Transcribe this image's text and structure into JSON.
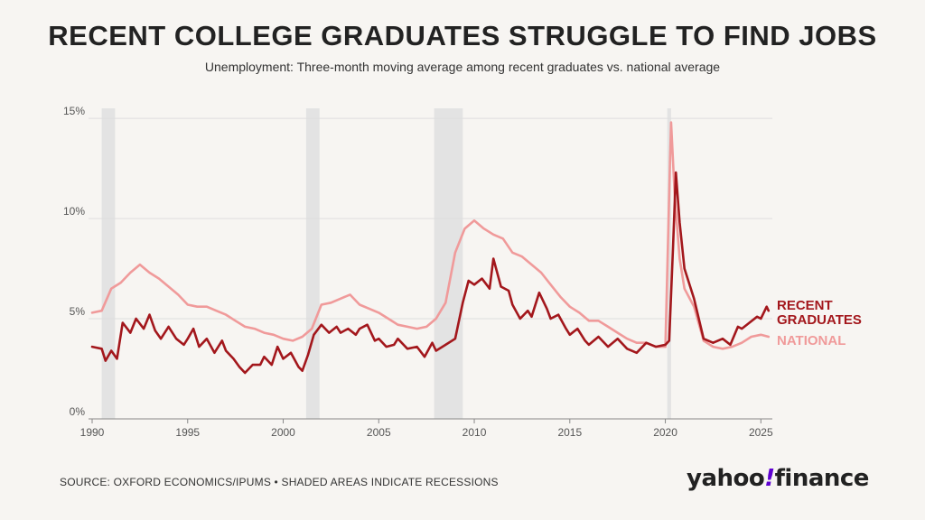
{
  "header": {
    "title": "RECENT COLLEGE GRADUATES STRUGGLE TO FIND JOBS",
    "subtitle": "Unemployment: Three-month moving average among recent graduates vs. national average"
  },
  "footer": {
    "source": "SOURCE: OXFORD ECONOMICS/IPUMS • SHADED AREAS INDICATE RECESSIONS",
    "logo_yahoo": "yahoo",
    "logo_bang": "!",
    "logo_finance": "finance"
  },
  "chart_data": {
    "type": "line",
    "title": "RECENT COLLEGE GRADUATES STRUGGLE TO FIND JOBS",
    "subtitle": "Unemployment: Three-month moving average among recent graduates vs. national average",
    "xlabel": "",
    "ylabel": "",
    "xlim": [
      1990,
      2025.6
    ],
    "ylim": [
      0,
      15.5
    ],
    "x_ticks": [
      1990,
      1995,
      2000,
      2005,
      2010,
      2015,
      2020,
      2025
    ],
    "x_tick_labels": [
      "1990",
      "1995",
      "2000",
      "2005",
      "2010",
      "2015",
      "2020",
      "2025"
    ],
    "y_ticks": [
      0,
      5,
      10,
      15
    ],
    "y_tick_labels": [
      "0%",
      "5%",
      "10%",
      "15%"
    ],
    "grid": true,
    "recessions": [
      [
        1990.5,
        1991.2
      ],
      [
        2001.2,
        2001.9
      ],
      [
        2007.9,
        2009.4
      ],
      [
        2020.1,
        2020.3
      ]
    ],
    "series": [
      {
        "name": "NATIONAL",
        "color": "#f09a9a",
        "points": [
          [
            1990,
            5.3
          ],
          [
            1990.5,
            5.4
          ],
          [
            1991,
            6.5
          ],
          [
            1991.5,
            6.8
          ],
          [
            1992,
            7.3
          ],
          [
            1992.5,
            7.7
          ],
          [
            1993,
            7.3
          ],
          [
            1993.5,
            7.0
          ],
          [
            1994,
            6.6
          ],
          [
            1994.5,
            6.2
          ],
          [
            1995,
            5.7
          ],
          [
            1995.5,
            5.6
          ],
          [
            1996,
            5.6
          ],
          [
            1996.5,
            5.4
          ],
          [
            1997,
            5.2
          ],
          [
            1997.5,
            4.9
          ],
          [
            1998,
            4.6
          ],
          [
            1998.5,
            4.5
          ],
          [
            1999,
            4.3
          ],
          [
            1999.5,
            4.2
          ],
          [
            2000,
            4.0
          ],
          [
            2000.5,
            3.9
          ],
          [
            2001,
            4.1
          ],
          [
            2001.5,
            4.5
          ],
          [
            2002,
            5.7
          ],
          [
            2002.5,
            5.8
          ],
          [
            2003,
            6.0
          ],
          [
            2003.5,
            6.2
          ],
          [
            2004,
            5.7
          ],
          [
            2004.5,
            5.5
          ],
          [
            2005,
            5.3
          ],
          [
            2005.5,
            5.0
          ],
          [
            2006,
            4.7
          ],
          [
            2006.5,
            4.6
          ],
          [
            2007,
            4.5
          ],
          [
            2007.5,
            4.6
          ],
          [
            2008,
            5.0
          ],
          [
            2008.5,
            5.8
          ],
          [
            2009,
            8.3
          ],
          [
            2009.5,
            9.5
          ],
          [
            2010,
            9.9
          ],
          [
            2010.5,
            9.5
          ],
          [
            2011,
            9.2
          ],
          [
            2011.5,
            9.0
          ],
          [
            2012,
            8.3
          ],
          [
            2012.5,
            8.1
          ],
          [
            2013,
            7.7
          ],
          [
            2013.5,
            7.3
          ],
          [
            2014,
            6.7
          ],
          [
            2014.5,
            6.1
          ],
          [
            2015,
            5.6
          ],
          [
            2015.5,
            5.3
          ],
          [
            2016,
            4.9
          ],
          [
            2016.5,
            4.9
          ],
          [
            2017,
            4.6
          ],
          [
            2017.5,
            4.3
          ],
          [
            2018,
            4.0
          ],
          [
            2018.5,
            3.8
          ],
          [
            2019,
            3.8
          ],
          [
            2019.5,
            3.6
          ],
          [
            2020,
            3.6
          ],
          [
            2020.25,
            13.0
          ],
          [
            2020.3,
            14.8
          ],
          [
            2020.5,
            11.0
          ],
          [
            2020.75,
            8.0
          ],
          [
            2021,
            6.5
          ],
          [
            2021.5,
            5.6
          ],
          [
            2022,
            3.9
          ],
          [
            2022.5,
            3.6
          ],
          [
            2023,
            3.5
          ],
          [
            2023.5,
            3.6
          ],
          [
            2024,
            3.8
          ],
          [
            2024.5,
            4.1
          ],
          [
            2025,
            4.2
          ],
          [
            2025.4,
            4.1
          ]
        ]
      },
      {
        "name": "RECENT GRADUATES",
        "color": "#a3171c",
        "points": [
          [
            1990,
            3.6
          ],
          [
            1990.5,
            3.5
          ],
          [
            1990.7,
            2.9
          ],
          [
            1991,
            3.4
          ],
          [
            1991.3,
            3.0
          ],
          [
            1991.6,
            4.8
          ],
          [
            1992,
            4.3
          ],
          [
            1992.3,
            5.0
          ],
          [
            1992.7,
            4.5
          ],
          [
            1993,
            5.2
          ],
          [
            1993.3,
            4.4
          ],
          [
            1993.6,
            4.0
          ],
          [
            1994,
            4.6
          ],
          [
            1994.4,
            4.0
          ],
          [
            1994.8,
            3.7
          ],
          [
            1995,
            4.0
          ],
          [
            1995.3,
            4.5
          ],
          [
            1995.6,
            3.6
          ],
          [
            1996,
            4.0
          ],
          [
            1996.4,
            3.3
          ],
          [
            1996.8,
            3.9
          ],
          [
            1997,
            3.4
          ],
          [
            1997.4,
            3.0
          ],
          [
            1997.7,
            2.6
          ],
          [
            1998,
            2.3
          ],
          [
            1998.4,
            2.7
          ],
          [
            1998.8,
            2.7
          ],
          [
            1999,
            3.1
          ],
          [
            1999.4,
            2.7
          ],
          [
            1999.7,
            3.6
          ],
          [
            2000,
            3.0
          ],
          [
            2000.4,
            3.3
          ],
          [
            2000.8,
            2.6
          ],
          [
            2001,
            2.4
          ],
          [
            2001.3,
            3.2
          ],
          [
            2001.6,
            4.2
          ],
          [
            2002,
            4.7
          ],
          [
            2002.4,
            4.3
          ],
          [
            2002.8,
            4.6
          ],
          [
            2003,
            4.3
          ],
          [
            2003.4,
            4.5
          ],
          [
            2003.8,
            4.2
          ],
          [
            2004,
            4.5
          ],
          [
            2004.4,
            4.7
          ],
          [
            2004.8,
            3.9
          ],
          [
            2005,
            4.0
          ],
          [
            2005.4,
            3.6
          ],
          [
            2005.8,
            3.7
          ],
          [
            2006,
            4.0
          ],
          [
            2006.5,
            3.5
          ],
          [
            2007,
            3.6
          ],
          [
            2007.4,
            3.1
          ],
          [
            2007.8,
            3.8
          ],
          [
            2008,
            3.4
          ],
          [
            2008.5,
            3.7
          ],
          [
            2009,
            4.0
          ],
          [
            2009.4,
            5.8
          ],
          [
            2009.7,
            6.9
          ],
          [
            2010,
            6.7
          ],
          [
            2010.4,
            7.0
          ],
          [
            2010.8,
            6.5
          ],
          [
            2011,
            8.0
          ],
          [
            2011.4,
            6.6
          ],
          [
            2011.8,
            6.4
          ],
          [
            2012,
            5.7
          ],
          [
            2012.4,
            5.0
          ],
          [
            2012.8,
            5.4
          ],
          [
            2013,
            5.1
          ],
          [
            2013.4,
            6.3
          ],
          [
            2013.8,
            5.5
          ],
          [
            2014,
            5.0
          ],
          [
            2014.4,
            5.2
          ],
          [
            2014.8,
            4.5
          ],
          [
            2015,
            4.2
          ],
          [
            2015.4,
            4.5
          ],
          [
            2015.8,
            3.9
          ],
          [
            2016,
            3.7
          ],
          [
            2016.5,
            4.1
          ],
          [
            2017,
            3.6
          ],
          [
            2017.5,
            4.0
          ],
          [
            2018,
            3.5
          ],
          [
            2018.5,
            3.3
          ],
          [
            2019,
            3.8
          ],
          [
            2019.5,
            3.6
          ],
          [
            2020,
            3.7
          ],
          [
            2020.2,
            3.9
          ],
          [
            2020.4,
            8.5
          ],
          [
            2020.55,
            12.3
          ],
          [
            2020.75,
            9.8
          ],
          [
            2021,
            7.5
          ],
          [
            2021.5,
            6.0
          ],
          [
            2022,
            4.0
          ],
          [
            2022.5,
            3.8
          ],
          [
            2023,
            4.0
          ],
          [
            2023.4,
            3.7
          ],
          [
            2023.8,
            4.6
          ],
          [
            2024,
            4.5
          ],
          [
            2024.4,
            4.8
          ],
          [
            2024.8,
            5.1
          ],
          [
            2025,
            5.0
          ],
          [
            2025.3,
            5.6
          ],
          [
            2025.4,
            5.4
          ]
        ]
      }
    ],
    "legend": [
      {
        "text_lines": [
          "RECENT",
          "GRADUATES"
        ],
        "color": "#a3171c"
      },
      {
        "text_lines": [
          "NATIONAL"
        ],
        "color": "#f09a9a"
      }
    ]
  }
}
